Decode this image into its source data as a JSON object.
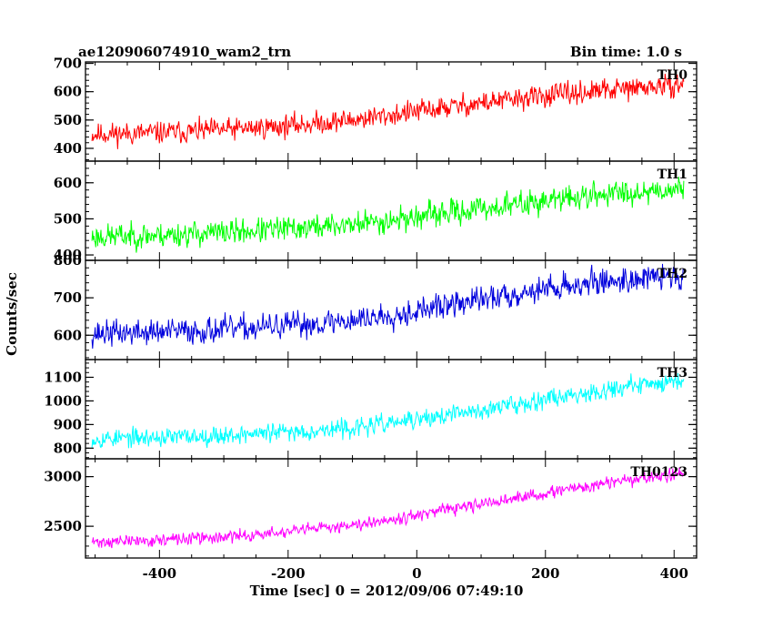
{
  "header": {
    "obs_id": "ae120906074910_wam2_trn",
    "bin_time": "Bin time: 1.0 s"
  },
  "axes": {
    "xlabel": "Time [sec] 0 = 2012/09/06 07:49:10",
    "ylabel": "Counts/sec"
  },
  "chart_data": {
    "type": "line",
    "title": "ae120906074910_wam2_trn",
    "subtitle": "Bin time: 1.0 s",
    "xlabel": "Time [sec] 0 = 2012/09/06 07:49:10",
    "ylabel": "Counts/sec",
    "xlim": [
      -515,
      435
    ],
    "x_ticks": [
      -400,
      -200,
      0,
      200,
      400
    ],
    "x_range": [
      -505,
      415
    ],
    "bin_time": 1.0,
    "grid": false,
    "panels": [
      {
        "name": "TH0",
        "color": "#ff0000",
        "ylim": [
          355,
          705
        ],
        "y_ticks": [
          400,
          500,
          600,
          700
        ],
        "trend": [
          [
            -505,
            450
          ],
          [
            -400,
            455
          ],
          [
            -300,
            465
          ],
          [
            -200,
            480
          ],
          [
            -100,
            500
          ],
          [
            0,
            530
          ],
          [
            100,
            560
          ],
          [
            200,
            585
          ],
          [
            300,
            605
          ],
          [
            415,
            625
          ]
        ],
        "noise": 45,
        "seed": 11
      },
      {
        "name": "TH1",
        "color": "#00ff00",
        "ylim": [
          385,
          660
        ],
        "y_ticks": [
          400,
          500,
          600
        ],
        "trend": [
          [
            -505,
            450
          ],
          [
            -400,
            455
          ],
          [
            -300,
            462
          ],
          [
            -200,
            472
          ],
          [
            -100,
            485
          ],
          [
            0,
            505
          ],
          [
            100,
            528
          ],
          [
            200,
            550
          ],
          [
            300,
            570
          ],
          [
            415,
            585
          ]
        ],
        "noise": 40,
        "seed": 23
      },
      {
        "name": "TH2",
        "color": "#0000dd",
        "ylim": [
          535,
          800
        ],
        "y_ticks": [
          600,
          700,
          800
        ],
        "trend": [
          [
            -505,
            605
          ],
          [
            -400,
            608
          ],
          [
            -300,
            615
          ],
          [
            -200,
            625
          ],
          [
            -100,
            640
          ],
          [
            0,
            665
          ],
          [
            100,
            695
          ],
          [
            200,
            725
          ],
          [
            300,
            745
          ],
          [
            415,
            760
          ]
        ],
        "noise": 40,
        "seed": 37
      },
      {
        "name": "TH3",
        "color": "#00ffff",
        "ylim": [
          755,
          1175
        ],
        "y_ticks": [
          800,
          900,
          1000,
          1100
        ],
        "trend": [
          [
            -505,
            840
          ],
          [
            -400,
            845
          ],
          [
            -300,
            855
          ],
          [
            -200,
            868
          ],
          [
            -100,
            885
          ],
          [
            0,
            920
          ],
          [
            100,
            960
          ],
          [
            200,
            1010
          ],
          [
            300,
            1050
          ],
          [
            415,
            1090
          ]
        ],
        "noise": 45,
        "seed": 53
      },
      {
        "name": "TH0123",
        "color": "#ff00ff",
        "ylim": [
          2180,
          3180
        ],
        "y_ticks": [
          2500,
          3000
        ],
        "trend": [
          [
            -505,
            2340
          ],
          [
            -400,
            2360
          ],
          [
            -300,
            2390
          ],
          [
            -200,
            2440
          ],
          [
            -100,
            2520
          ],
          [
            0,
            2610
          ],
          [
            100,
            2720
          ],
          [
            200,
            2830
          ],
          [
            300,
            2940
          ],
          [
            415,
            3030
          ]
        ],
        "noise": 70,
        "seed": 71
      }
    ]
  }
}
